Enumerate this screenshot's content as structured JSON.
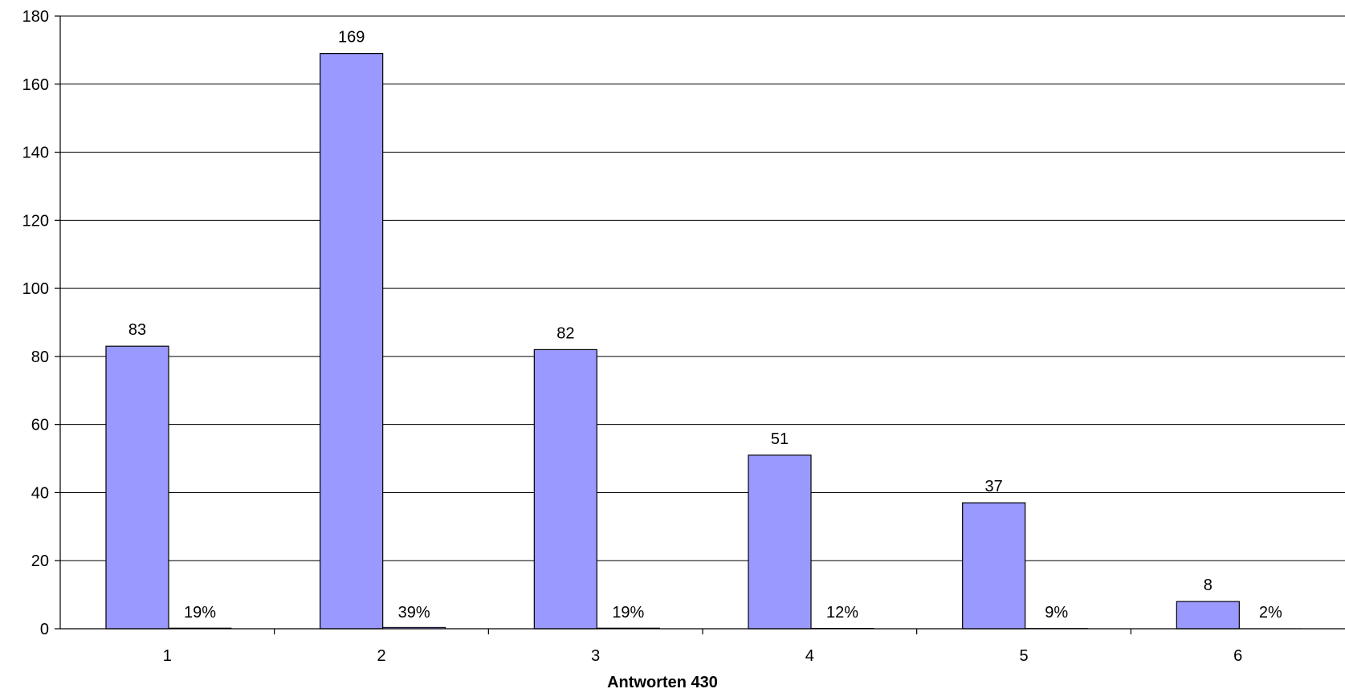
{
  "chart_data": {
    "type": "bar",
    "categories": [
      "1",
      "2",
      "3",
      "4",
      "5",
      "6"
    ],
    "series": [
      {
        "values": [
          83,
          169,
          82,
          51,
          37,
          8
        ],
        "color": "#9999FF"
      },
      {
        "values": [
          0.19,
          0.39,
          0.19,
          0.12,
          0.09,
          0.02
        ],
        "color": "#9999FF"
      }
    ],
    "data_labels": [
      "83",
      "169",
      "82",
      "51",
      "37",
      "8"
    ],
    "percent_labels": [
      "19%",
      "39%",
      "19%",
      "12%",
      "9%",
      "2%"
    ],
    "xlabel": "Antworten 430",
    "ylabel": "",
    "ylim": [
      0,
      180
    ],
    "yticks": [
      "0",
      "20",
      "40",
      "60",
      "80",
      "100",
      "120",
      "140",
      "160",
      "180"
    ],
    "grid": true,
    "legend": "none"
  }
}
